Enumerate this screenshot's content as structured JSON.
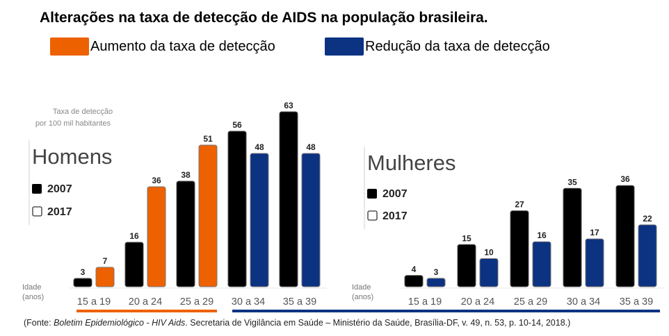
{
  "title": "Alterações na taxa de detecção de AIDS na população brasileira.",
  "legend": {
    "increase": {
      "label": "Aumento da taxa de detecção",
      "color": "#ee6100"
    },
    "decrease": {
      "label": "Redução da taxa de detecção",
      "color": "#0c3282"
    }
  },
  "source": {
    "prefix": "(Fonte: ",
    "italic": "Boletim Epidemiológico - HIV Aids",
    "rest": ". Secretaria de Vigilância em Saúde – Ministério da Saúde, Brasília-DF, v. 49, n. 53, p. 10-14, 2018.)"
  },
  "chart_data": [
    {
      "type": "bar",
      "title": "Homens",
      "ylabel": "Taxa de detecção por 100 mil habitantes",
      "xlabel": "Idade (anos)",
      "categories": [
        "15 a 19",
        "20 a 24",
        "25 a 29",
        "30 a 34",
        "35 a 39"
      ],
      "series": [
        {
          "name": "2007",
          "values": [
            3,
            16,
            38,
            56,
            63
          ],
          "color": "#000000"
        },
        {
          "name": "2017",
          "values": [
            7,
            36,
            51,
            48,
            48
          ],
          "colors": [
            "#ee6100",
            "#ee6100",
            "#ee6100",
            "#0c3282",
            "#0c3282"
          ]
        }
      ],
      "ylim": [
        0,
        63
      ]
    },
    {
      "type": "bar",
      "title": "Mulheres",
      "xlabel": "Idade (anos)",
      "categories": [
        "15 a 19",
        "20 a 24",
        "25 a 29",
        "30 a 34",
        "35 a 39"
      ],
      "series": [
        {
          "name": "2007",
          "values": [
            4,
            15,
            27,
            35,
            36
          ],
          "color": "#000000"
        },
        {
          "name": "2017",
          "values": [
            3,
            10,
            16,
            17,
            22
          ],
          "colors": [
            "#0c3282",
            "#0c3282",
            "#0c3282",
            "#0c3282",
            "#0c3282"
          ]
        }
      ],
      "ylim": [
        0,
        36
      ]
    }
  ],
  "range_bars": [
    {
      "color": "#ee6100"
    },
    {
      "color": "#0c3282"
    }
  ]
}
